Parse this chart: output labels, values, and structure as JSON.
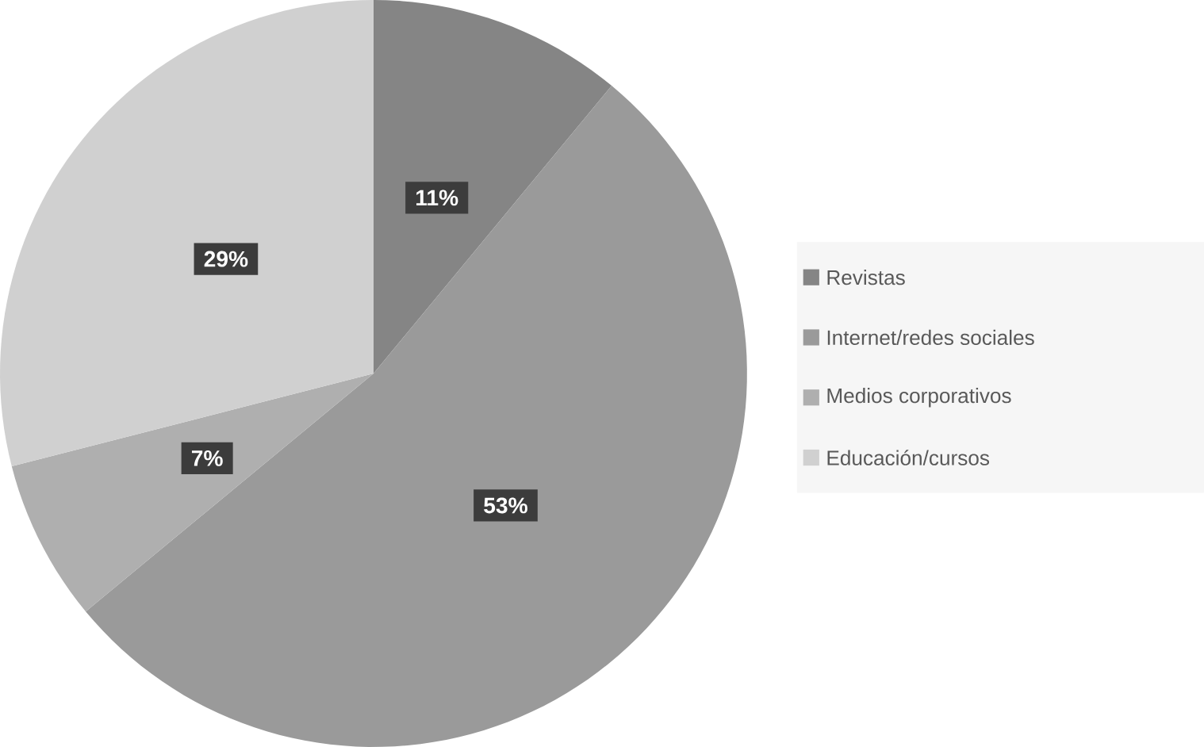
{
  "chart_data": {
    "type": "pie",
    "categories": [
      "Revistas",
      "Internet/redes sociales",
      "Medios corporativos",
      "Educación/cursos"
    ],
    "values": [
      11,
      53,
      7,
      29
    ],
    "colors": [
      "#858585",
      "#9a9a9a",
      "#afafaf",
      "#d0d0d0"
    ],
    "value_labels": [
      "11%",
      "53%",
      "7%",
      "29%"
    ],
    "legend": "right"
  }
}
